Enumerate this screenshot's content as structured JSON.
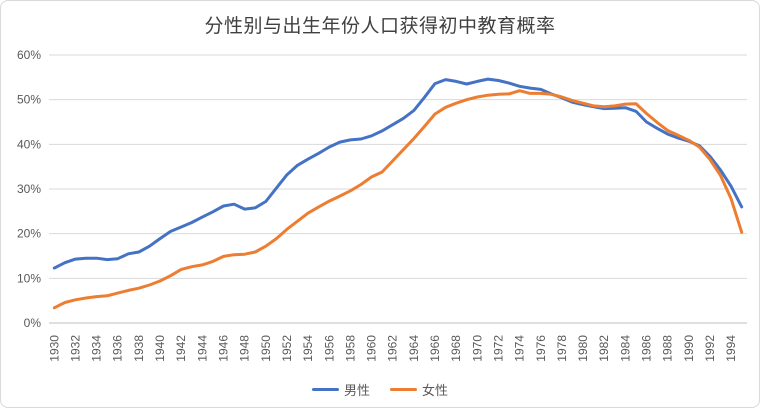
{
  "chart": {
    "title": "分性别与出生年份人口获得初中教育概率",
    "legend_items": [
      "男性",
      "女性"
    ]
  },
  "colors": {
    "male_line": "#4472C4",
    "female_line": "#ED7D31",
    "gridline": "#D9D9D9",
    "axis_line": "#BFBFBF",
    "tick_text": "#595959",
    "title_text": "#404040",
    "card_border": "#D9D9D9"
  },
  "chart_data": {
    "type": "line",
    "title": "分性别与出生年份人口获得初中教育概率",
    "xlabel": "",
    "ylabel": "",
    "ylim": [
      0,
      60
    ],
    "y_tick_values": [
      0,
      10,
      20,
      30,
      40,
      50,
      60
    ],
    "y_tick_labels": [
      "0%",
      "10%",
      "20%",
      "30%",
      "40%",
      "50%",
      "60%"
    ],
    "x_label_every": 2,
    "x_label_first": 1930,
    "x_label_last": 1994,
    "grid": "horizontal",
    "legend_position": "bottom",
    "x": [
      1930,
      1931,
      1932,
      1933,
      1934,
      1935,
      1936,
      1937,
      1938,
      1939,
      1940,
      1941,
      1942,
      1943,
      1944,
      1945,
      1946,
      1947,
      1948,
      1949,
      1950,
      1951,
      1952,
      1953,
      1954,
      1955,
      1956,
      1957,
      1958,
      1959,
      1960,
      1961,
      1962,
      1963,
      1964,
      1965,
      1966,
      1967,
      1968,
      1969,
      1970,
      1971,
      1972,
      1973,
      1974,
      1975,
      1976,
      1977,
      1978,
      1979,
      1980,
      1981,
      1982,
      1983,
      1984,
      1985,
      1986,
      1987,
      1988,
      1989,
      1990,
      1991,
      1992,
      1993,
      1994,
      1995
    ],
    "series": [
      {
        "name": "男性",
        "color": "#4472C4",
        "values": [
          12.3,
          13.5,
          14.3,
          14.5,
          14.5,
          14.2,
          14.4,
          15.5,
          15.9,
          17.2,
          18.9,
          20.5,
          21.5,
          22.5,
          23.7,
          24.9,
          26.2,
          26.6,
          25.5,
          25.8,
          27.2,
          30.2,
          33.2,
          35.3,
          36.7,
          38.0,
          39.4,
          40.5,
          41.0,
          41.2,
          41.9,
          43.0,
          44.4,
          45.8,
          47.6,
          50.5,
          53.6,
          54.5,
          54.1,
          53.5,
          54.1,
          54.6,
          54.3,
          53.7,
          53.0,
          52.6,
          52.3,
          51.3,
          50.4,
          49.4,
          48.9,
          48.4,
          48.0,
          48.1,
          48.2,
          47.4,
          45.0,
          43.6,
          42.3,
          41.4,
          40.7,
          39.7,
          37.3,
          34.2,
          30.6,
          26.0
        ]
      },
      {
        "name": "女性",
        "color": "#ED7D31",
        "values": [
          3.4,
          4.6,
          5.2,
          5.6,
          5.9,
          6.1,
          6.7,
          7.3,
          7.8,
          8.5,
          9.4,
          10.6,
          12.0,
          12.6,
          13.0,
          13.8,
          14.9,
          15.3,
          15.4,
          15.9,
          17.2,
          18.9,
          21.0,
          22.8,
          24.6,
          26.0,
          27.3,
          28.4,
          29.6,
          31.0,
          32.7,
          33.8,
          36.3,
          38.8,
          41.3,
          44.0,
          46.8,
          48.3,
          49.2,
          50.0,
          50.6,
          51.0,
          51.2,
          51.3,
          52.0,
          51.4,
          51.4,
          51.2,
          50.6,
          49.8,
          49.2,
          48.6,
          48.4,
          48.6,
          49.0,
          49.1,
          46.9,
          44.9,
          43.1,
          42.0,
          40.9,
          39.4,
          36.6,
          33.0,
          27.8,
          20.3
        ]
      }
    ]
  }
}
